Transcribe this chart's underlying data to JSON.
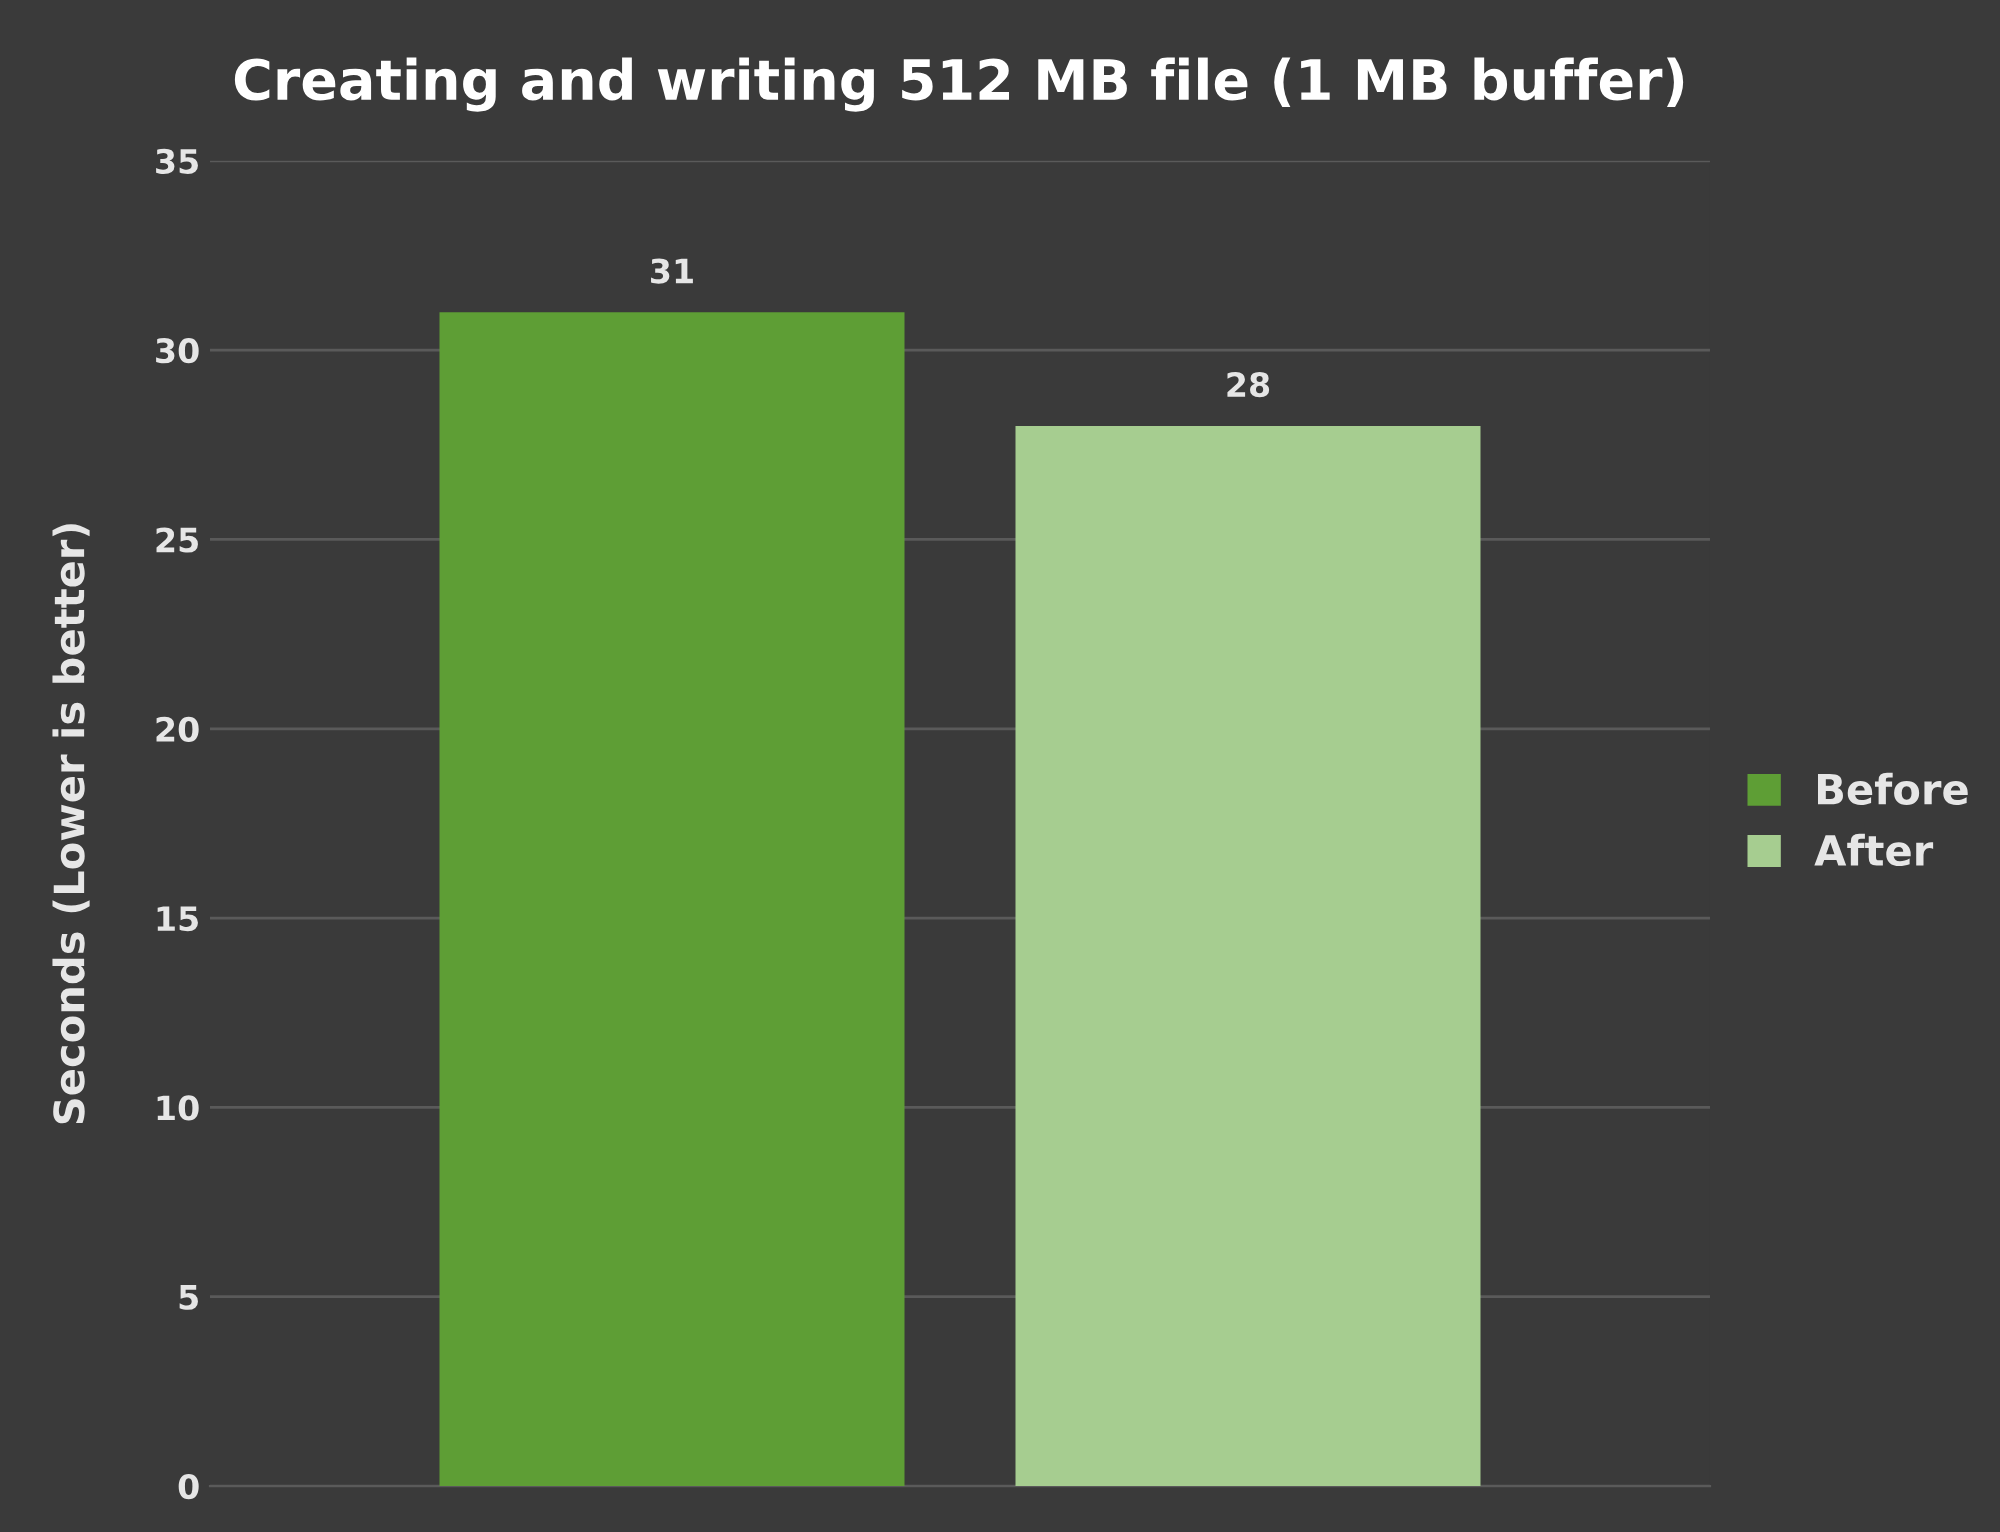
{
  "chart_data": {
    "type": "bar",
    "title": "Creating and writing 512 MB file (1 MB buffer)",
    "ylabel": "Seconds (Lower is better)",
    "categories": [
      null
    ],
    "series": [
      {
        "name": "Before",
        "color": "#5e9e35",
        "values": [
          31
        ]
      },
      {
        "name": "After",
        "color": "#a6cd90",
        "values": [
          28
        ]
      }
    ],
    "ylim": [
      0,
      35
    ],
    "yticks": [
      0,
      5,
      10,
      15,
      20,
      25,
      30,
      35
    ],
    "grid": "y",
    "legend": "right",
    "data_labels": true
  }
}
